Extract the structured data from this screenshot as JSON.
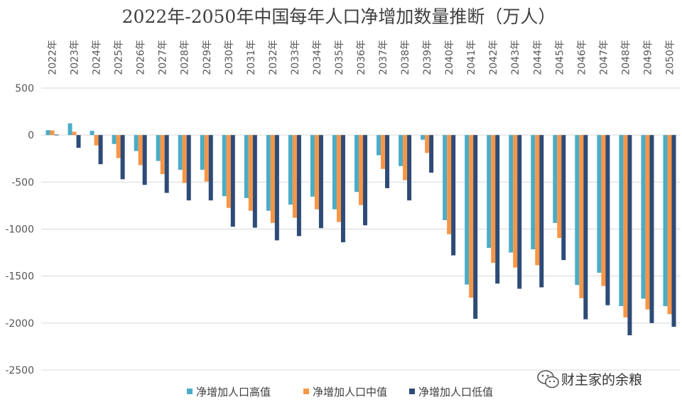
{
  "chart_data": {
    "type": "bar",
    "title": "2022年-2050年中国每年人口净增加数量推断（万人）",
    "xlabel": "",
    "ylabel": "",
    "ylim": [
      -2500,
      500
    ],
    "yticks": [
      500,
      0,
      -500,
      -1000,
      -1500,
      -2000,
      -2500
    ],
    "grid": true,
    "legend_position": "bottom",
    "categories": [
      "2022年",
      "2023年",
      "2024年",
      "2025年",
      "2026年",
      "2027年",
      "2028年",
      "2029年",
      "2030年",
      "2031年",
      "2032年",
      "2033年",
      "2034年",
      "2035年",
      "2036年",
      "2037年",
      "2038年",
      "2039年",
      "2040年",
      "2041年",
      "2042年",
      "2043年",
      "2044年",
      "2045年",
      "2046年",
      "2047年",
      "2048年",
      "2049年",
      "2050年"
    ],
    "series": [
      {
        "name": "净增加人口高值",
        "color": "#4BACC6",
        "values": [
          52,
          125,
          45,
          -95,
          -170,
          -275,
          -370,
          -370,
          -650,
          -670,
          -805,
          -740,
          -655,
          -790,
          -605,
          -215,
          -330,
          -50,
          -905,
          -1590,
          -1200,
          -1250,
          -1215,
          -935,
          -1595,
          -1465,
          -1820,
          -1740,
          -1820
        ]
      },
      {
        "name": "净增加人口中值",
        "color": "#F79646",
        "values": [
          50,
          35,
          -110,
          -245,
          -320,
          -415,
          -510,
          -495,
          -775,
          -805,
          -935,
          -880,
          -790,
          -925,
          -745,
          -360,
          -480,
          -190,
          -1055,
          -1730,
          -1360,
          -1410,
          -1385,
          -1095,
          -1735,
          -1605,
          -1940,
          -1855,
          -1905
        ]
      },
      {
        "name": "净增加人口低值",
        "color": "#2E4B77",
        "values": [
          5,
          -135,
          -310,
          -470,
          -530,
          -615,
          -695,
          -695,
          -975,
          -985,
          -1120,
          -1075,
          -990,
          -1140,
          -960,
          -565,
          -695,
          -400,
          -1280,
          -1955,
          -1580,
          -1635,
          -1620,
          -1330,
          -1960,
          -1810,
          -2130,
          -2000,
          -2040
        ]
      }
    ]
  },
  "watermark": {
    "icon": "wechat-icon",
    "text": "财主家的余粮"
  }
}
